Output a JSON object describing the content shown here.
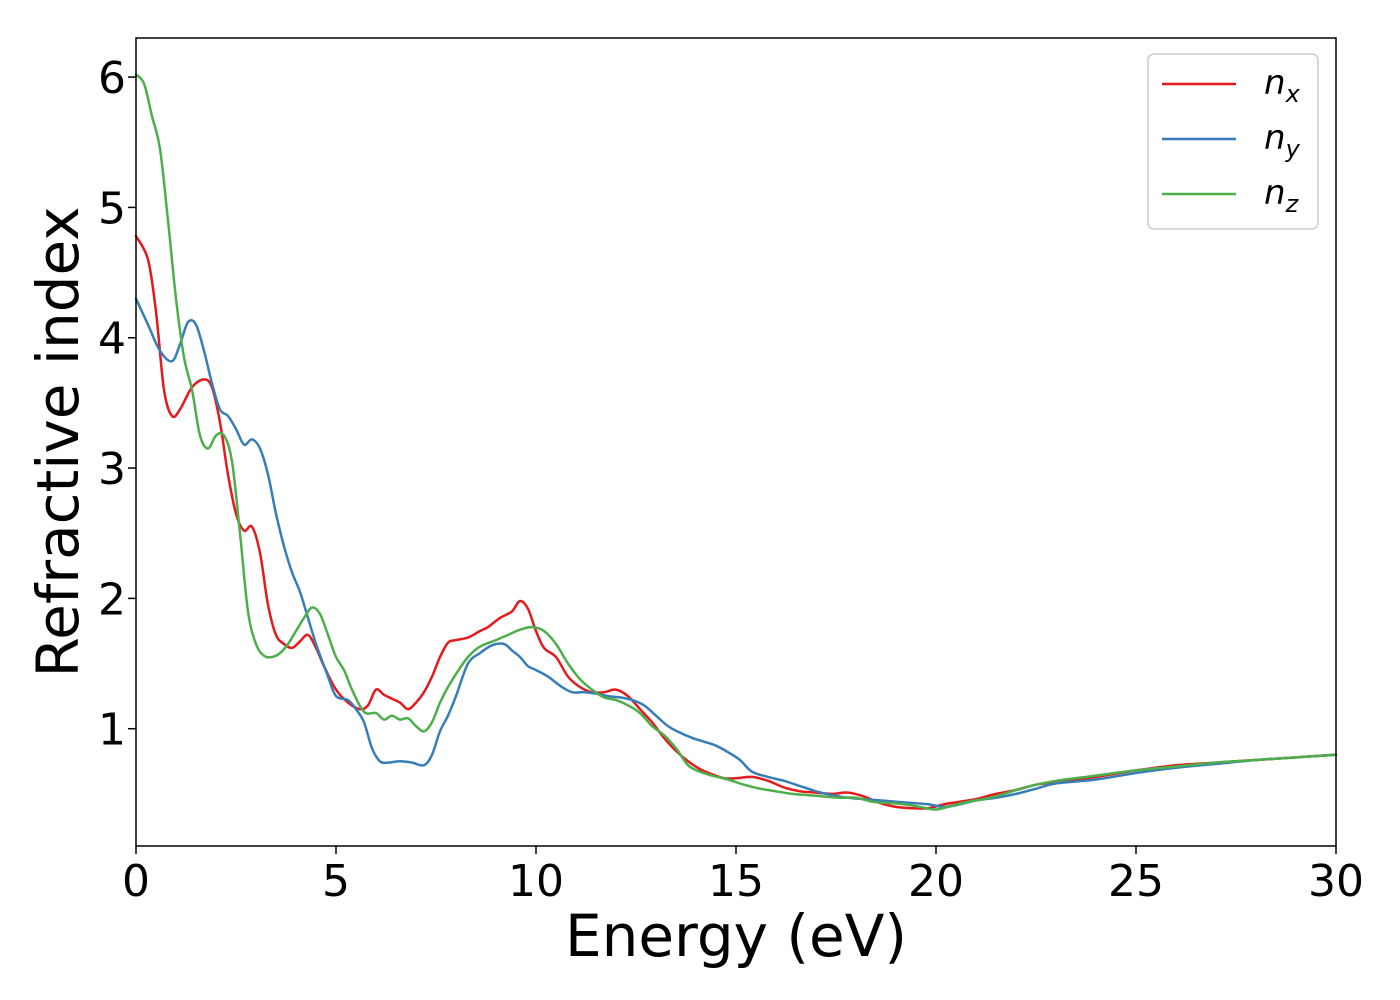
{
  "chart_data": {
    "type": "line",
    "xlabel": "Energy (eV)",
    "ylabel": "Refractive index",
    "xlim": [
      0,
      30
    ],
    "ylim": [
      0.1,
      6.3
    ],
    "xticks": [
      0,
      5,
      10,
      15,
      20,
      25,
      30
    ],
    "xtick_labels": [
      "0",
      "5",
      "10",
      "15",
      "20",
      "25",
      "30"
    ],
    "yticks": [
      1,
      2,
      3,
      4,
      5,
      6
    ],
    "ytick_labels": [
      "1",
      "2",
      "3",
      "4",
      "5",
      "6"
    ],
    "grid": false,
    "legend": "top-right",
    "series": [
      {
        "name": "n_x",
        "base": "n",
        "sub": "x",
        "color": "#e41a1c",
        "x": [
          0,
          0.3,
          0.5,
          0.7,
          0.9,
          1.1,
          1.4,
          1.7,
          1.9,
          2.1,
          2.3,
          2.5,
          2.7,
          2.9,
          3.1,
          3.3,
          3.5,
          3.7,
          3.9,
          4.1,
          4.3,
          4.5,
          4.7,
          5.0,
          5.3,
          5.6,
          5.8,
          6.0,
          6.2,
          6.4,
          6.6,
          6.8,
          7.0,
          7.2,
          7.4,
          7.6,
          7.8,
          8.0,
          8.3,
          8.6,
          8.8,
          9.1,
          9.4,
          9.6,
          9.8,
          10.0,
          10.2,
          10.5,
          10.8,
          11.1,
          11.4,
          11.7,
          12.0,
          12.3,
          12.6,
          12.9,
          13.2,
          13.5,
          13.8,
          14.1,
          14.4,
          14.7,
          15.0,
          15.4,
          15.8,
          16.2,
          16.6,
          17.0,
          17.4,
          17.8,
          18.2,
          18.6,
          19.0,
          19.4,
          19.8,
          20.2,
          20.6,
          21.0,
          21.5,
          22.0,
          22.5,
          23.0,
          24.0,
          25.0,
          26.0,
          27.0,
          28.0,
          29.0,
          30.0
        ],
        "y": [
          4.78,
          4.6,
          4.2,
          3.6,
          3.4,
          3.45,
          3.62,
          3.68,
          3.62,
          3.35,
          2.95,
          2.65,
          2.52,
          2.55,
          2.35,
          1.95,
          1.72,
          1.65,
          1.62,
          1.67,
          1.72,
          1.62,
          1.48,
          1.3,
          1.2,
          1.15,
          1.18,
          1.3,
          1.26,
          1.23,
          1.2,
          1.15,
          1.2,
          1.28,
          1.4,
          1.55,
          1.66,
          1.68,
          1.7,
          1.75,
          1.78,
          1.85,
          1.9,
          1.98,
          1.92,
          1.75,
          1.62,
          1.55,
          1.4,
          1.32,
          1.28,
          1.28,
          1.3,
          1.25,
          1.15,
          1.05,
          0.93,
          0.83,
          0.75,
          0.69,
          0.65,
          0.62,
          0.62,
          0.63,
          0.6,
          0.55,
          0.52,
          0.51,
          0.5,
          0.51,
          0.48,
          0.43,
          0.4,
          0.39,
          0.39,
          0.42,
          0.44,
          0.46,
          0.5,
          0.53,
          0.57,
          0.59,
          0.63,
          0.68,
          0.72,
          0.74,
          0.76,
          0.78,
          0.8
        ]
      },
      {
        "name": "n_y",
        "base": "n",
        "sub": "y",
        "color": "#377eb8",
        "x": [
          0,
          0.3,
          0.6,
          0.9,
          1.1,
          1.3,
          1.5,
          1.7,
          1.9,
          2.1,
          2.3,
          2.5,
          2.7,
          2.9,
          3.1,
          3.3,
          3.5,
          3.7,
          3.9,
          4.1,
          4.3,
          4.5,
          4.8,
          5.0,
          5.3,
          5.5,
          5.7,
          5.9,
          6.1,
          6.3,
          6.6,
          6.9,
          7.2,
          7.4,
          7.6,
          7.8,
          8.0,
          8.3,
          8.6,
          8.9,
          9.2,
          9.4,
          9.6,
          9.8,
          10.0,
          10.3,
          10.6,
          10.9,
          11.2,
          11.5,
          11.8,
          12.1,
          12.4,
          12.7,
          13.0,
          13.3,
          13.6,
          13.9,
          14.2,
          14.5,
          14.8,
          15.1,
          15.4,
          15.8,
          16.2,
          16.6,
          17.0,
          17.4,
          17.8,
          18.2,
          18.6,
          19.0,
          19.4,
          19.8,
          20.2,
          20.6,
          21.0,
          21.5,
          22.0,
          22.5,
          23.0,
          24.0,
          25.0,
          26.0,
          27.0,
          28.0,
          29.0,
          30.0
        ],
        "y": [
          4.3,
          4.1,
          3.9,
          3.82,
          3.95,
          4.12,
          4.1,
          3.9,
          3.65,
          3.45,
          3.4,
          3.3,
          3.18,
          3.22,
          3.15,
          2.95,
          2.65,
          2.4,
          2.2,
          2.05,
          1.85,
          1.65,
          1.4,
          1.25,
          1.22,
          1.15,
          1.05,
          0.85,
          0.75,
          0.74,
          0.75,
          0.74,
          0.72,
          0.8,
          0.98,
          1.1,
          1.25,
          1.5,
          1.58,
          1.64,
          1.65,
          1.6,
          1.55,
          1.48,
          1.45,
          1.4,
          1.33,
          1.28,
          1.28,
          1.27,
          1.25,
          1.24,
          1.22,
          1.18,
          1.1,
          1.02,
          0.97,
          0.93,
          0.9,
          0.87,
          0.82,
          0.76,
          0.67,
          0.63,
          0.6,
          0.56,
          0.52,
          0.49,
          0.47,
          0.46,
          0.45,
          0.44,
          0.43,
          0.42,
          0.4,
          0.42,
          0.45,
          0.47,
          0.5,
          0.54,
          0.58,
          0.61,
          0.66,
          0.7,
          0.73,
          0.76,
          0.78,
          0.8
        ]
      },
      {
        "name": "n_z",
        "base": "n",
        "sub": "z",
        "color": "#4daf4a",
        "x": [
          0,
          0.2,
          0.4,
          0.6,
          0.8,
          1.0,
          1.2,
          1.4,
          1.6,
          1.8,
          2.0,
          2.2,
          2.4,
          2.6,
          2.8,
          3.0,
          3.2,
          3.4,
          3.6,
          3.8,
          4.0,
          4.2,
          4.4,
          4.6,
          4.8,
          5.0,
          5.2,
          5.4,
          5.7,
          6.0,
          6.2,
          6.4,
          6.6,
          6.8,
          7.0,
          7.2,
          7.4,
          7.6,
          7.8,
          8.0,
          8.3,
          8.6,
          9.0,
          9.3,
          9.6,
          9.9,
          10.2,
          10.5,
          10.8,
          11.1,
          11.4,
          11.7,
          12.0,
          12.3,
          12.6,
          12.9,
          13.2,
          13.5,
          13.8,
          14.1,
          14.4,
          14.8,
          15.2,
          15.6,
          16.0,
          16.4,
          16.8,
          17.2,
          17.6,
          18.0,
          18.4,
          18.8,
          19.2,
          19.6,
          20.0,
          20.4,
          20.8,
          21.2,
          21.6,
          22.0,
          22.5,
          23.0,
          24.0,
          25.0,
          26.0,
          27.0,
          28.0,
          29.0,
          30.0
        ],
        "y": [
          6.02,
          5.95,
          5.7,
          5.45,
          4.9,
          4.3,
          3.85,
          3.6,
          3.25,
          3.15,
          3.25,
          3.25,
          3.05,
          2.5,
          1.9,
          1.65,
          1.56,
          1.55,
          1.58,
          1.65,
          1.75,
          1.85,
          1.93,
          1.88,
          1.72,
          1.55,
          1.45,
          1.3,
          1.13,
          1.12,
          1.07,
          1.1,
          1.07,
          1.08,
          1.02,
          0.98,
          1.05,
          1.2,
          1.32,
          1.42,
          1.55,
          1.63,
          1.68,
          1.72,
          1.76,
          1.78,
          1.75,
          1.65,
          1.5,
          1.38,
          1.3,
          1.24,
          1.22,
          1.18,
          1.12,
          1.02,
          0.95,
          0.85,
          0.72,
          0.67,
          0.64,
          0.61,
          0.57,
          0.54,
          0.52,
          0.5,
          0.49,
          0.48,
          0.47,
          0.47,
          0.44,
          0.43,
          0.42,
          0.4,
          0.38,
          0.41,
          0.44,
          0.46,
          0.49,
          0.53,
          0.57,
          0.6,
          0.64,
          0.68,
          0.71,
          0.74,
          0.76,
          0.78,
          0.8
        ]
      }
    ]
  }
}
